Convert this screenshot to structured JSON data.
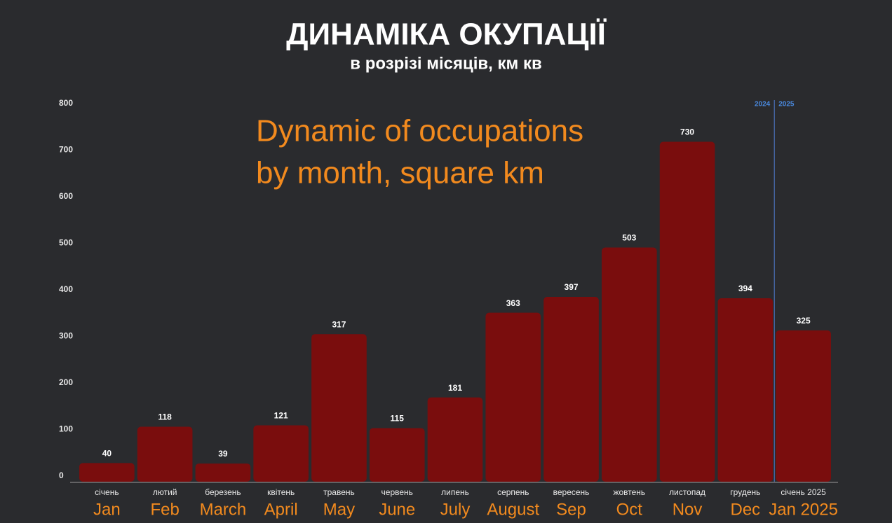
{
  "chart_data": {
    "type": "bar",
    "title": "ДИНАМІКА ОКУПАЦІЇ",
    "subtitle": "в розрізі місяців, км кв",
    "annotation": [
      "Dynamic of occupations",
      "by month, square km"
    ],
    "categories": [
      "січень",
      "лютий",
      "березень",
      "квітень",
      "травень",
      "червень",
      "липень",
      "серпень",
      "вересень",
      "жовтень",
      "листопад",
      "грудень",
      "січень 2025"
    ],
    "categories_en": [
      "Jan",
      "Feb",
      "March",
      "April",
      "May",
      "June",
      "July",
      "August",
      "Sep",
      "Oct",
      "Nov",
      "Dec",
      "Jan 2025"
    ],
    "values": [
      40,
      118,
      39,
      121,
      317,
      115,
      181,
      363,
      397,
      503,
      730,
      394,
      325
    ],
    "color": "#7a0d0d",
    "ylim": [
      0,
      800
    ],
    "yticks": [
      0,
      100,
      200,
      300,
      400,
      500,
      600,
      700,
      800
    ],
    "grid": false,
    "period_labels": [
      "2024",
      "2025"
    ]
  }
}
